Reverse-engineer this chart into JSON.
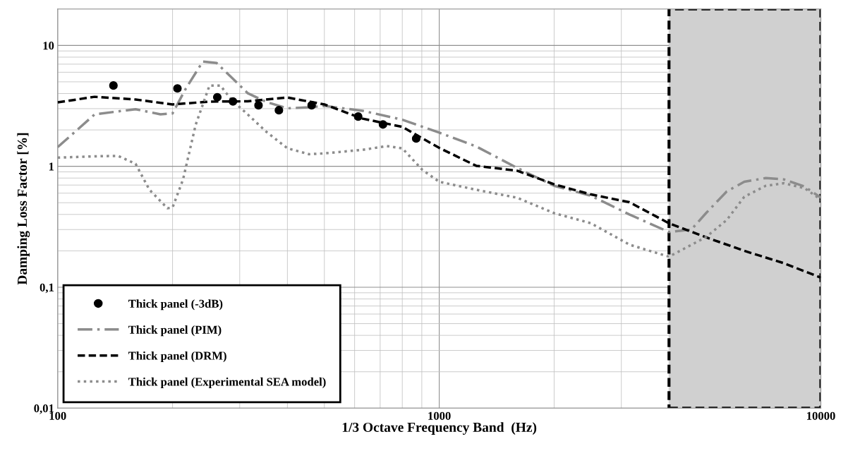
{
  "chart_data": {
    "type": "line",
    "xlabel": "1/3 Octave Frequency Band  (Hz)",
    "ylabel": "Damping Loss Factor [%]",
    "log": "xy",
    "grid": true,
    "legend": "bottom left",
    "xlim": [
      100,
      10000
    ],
    "xticks": [
      100,
      1000,
      10000
    ],
    "ylim": [
      0.01,
      20
    ],
    "yticks": [
      {
        "value": 0.01,
        "label": "0,01"
      },
      {
        "value": 0.1,
        "label": "0,1"
      },
      1,
      10
    ],
    "bands": [
      {
        "axis": "x",
        "from": 4000,
        "to": 10000,
        "color": "#d0d0d0"
      }
    ],
    "series": [
      {
        "name": "Thick panel (-3dB)",
        "type": "scatter",
        "marker": "circle",
        "color": "#000000",
        "x": [
          140,
          206,
          262,
          288,
          336,
          380,
          463,
          613,
          712,
          870
        ],
        "values": [
          4.66,
          4.41,
          3.73,
          3.44,
          3.2,
          2.91,
          3.2,
          2.58,
          2.22,
          1.7
        ]
      },
      {
        "name": "Thick panel (PIM)",
        "type": "line",
        "line_style": "dashdot",
        "color": "#8c8c8c",
        "x": [
          100,
          125,
          160,
          186,
          200,
          216,
          240,
          261,
          285,
          315,
          353,
          400,
          456,
          500,
          630,
          800,
          1000,
          1250,
          1600,
          2000,
          2500,
          3150,
          4000,
          4577,
          5000,
          5667,
          6300,
          7170,
          8000,
          9065,
          10000
        ],
        "values": [
          1.44,
          2.69,
          2.97,
          2.69,
          2.74,
          4.32,
          7.35,
          7.15,
          5.47,
          4.02,
          3.4,
          3.02,
          3.08,
          3.16,
          2.88,
          2.43,
          1.9,
          1.46,
          0.97,
          0.69,
          0.57,
          0.4,
          0.286,
          0.3,
          0.41,
          0.62,
          0.745,
          0.8,
          0.78,
          0.68,
          0.55
        ]
      },
      {
        "name": "Thick panel (DRM)",
        "type": "line",
        "line_style": "dashed",
        "color": "#000000",
        "x": [
          100,
          125,
          160,
          200,
          250,
          315,
          400,
          500,
          630,
          800,
          1000,
          1250,
          1600,
          2000,
          2500,
          3150,
          4000,
          5000,
          6300,
          8000,
          10000
        ],
        "values": [
          3.38,
          3.76,
          3.57,
          3.25,
          3.43,
          3.45,
          3.71,
          3.25,
          2.48,
          2.12,
          1.42,
          1.01,
          0.92,
          0.71,
          0.585,
          0.505,
          0.338,
          0.259,
          0.2,
          0.158,
          0.12
        ]
      },
      {
        "name": "Thick panel (Experimental SEA model)",
        "type": "line",
        "line_style": "dotted",
        "color": "#8c8c8c",
        "x": [
          100,
          125,
          144,
          160,
          174,
          194,
          200,
          213,
          230,
          250,
          267,
          285,
          315,
          353,
          400,
          456,
          500,
          630,
          729,
          800,
          903,
          1000,
          1250,
          1600,
          2000,
          2500,
          3150,
          4000,
          5000,
          5667,
          6300,
          7170,
          8000,
          9065,
          10000
        ],
        "values": [
          1.18,
          1.21,
          1.22,
          1.05,
          0.64,
          0.45,
          0.456,
          0.775,
          2.21,
          4.66,
          4.66,
          3.57,
          2.68,
          1.92,
          1.41,
          1.26,
          1.28,
          1.37,
          1.47,
          1.41,
          0.935,
          0.745,
          0.64,
          0.55,
          0.41,
          0.338,
          0.225,
          0.179,
          0.26,
          0.36,
          0.56,
          0.69,
          0.725,
          0.66,
          0.53
        ]
      }
    ]
  }
}
